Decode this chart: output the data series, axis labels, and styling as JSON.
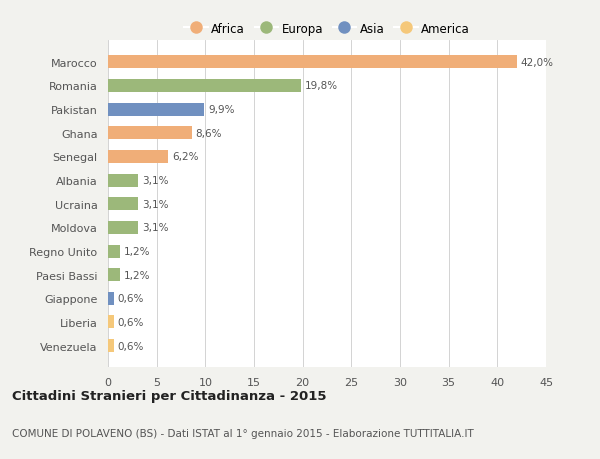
{
  "categories": [
    "Venezuela",
    "Liberia",
    "Giappone",
    "Paesi Bassi",
    "Regno Unito",
    "Moldova",
    "Ucraina",
    "Albania",
    "Senegal",
    "Ghana",
    "Pakistan",
    "Romania",
    "Marocco"
  ],
  "values": [
    0.6,
    0.6,
    0.6,
    1.2,
    1.2,
    3.1,
    3.1,
    3.1,
    6.2,
    8.6,
    9.9,
    19.8,
    42.0
  ],
  "labels": [
    "0,6%",
    "0,6%",
    "0,6%",
    "1,2%",
    "1,2%",
    "3,1%",
    "3,1%",
    "3,1%",
    "6,2%",
    "8,6%",
    "9,9%",
    "19,8%",
    "42,0%"
  ],
  "colors": [
    "#F5C87A",
    "#F5C87A",
    "#7090C0",
    "#9CB87A",
    "#9CB87A",
    "#9CB87A",
    "#9CB87A",
    "#9CB87A",
    "#F0AE78",
    "#F0AE78",
    "#7090C0",
    "#9CB87A",
    "#F0AE78"
  ],
  "legend_labels": [
    "Africa",
    "Europa",
    "Asia",
    "America"
  ],
  "legend_colors": [
    "#F0AE78",
    "#9CB87A",
    "#7090C0",
    "#F5C87A"
  ],
  "xlim": [
    0,
    45
  ],
  "xticks": [
    0,
    5,
    10,
    15,
    20,
    25,
    30,
    35,
    40,
    45
  ],
  "title": "Cittadini Stranieri per Cittadinanza - 2015",
  "subtitle": "COMUNE DI POLAVENO (BS) - Dati ISTAT al 1° gennaio 2015 - Elaborazione TUTTITALIA.IT",
  "background_color": "#F2F2EE",
  "plot_bg_color": "#FFFFFF"
}
